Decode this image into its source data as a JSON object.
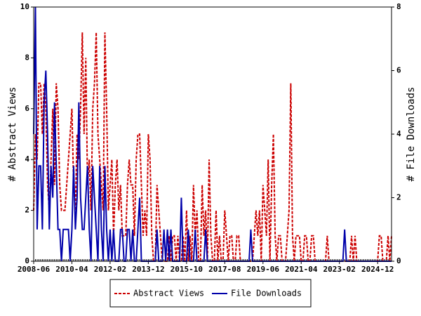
{
  "chart_data": {
    "type": "line",
    "x": [
      "2008-06",
      "2008-07",
      "2008-08",
      "2008-09",
      "2008-10",
      "2008-11",
      "2008-12",
      "2009-01",
      "2009-02",
      "2009-03",
      "2009-04",
      "2009-05",
      "2009-06",
      "2009-07",
      "2009-08",
      "2009-09",
      "2009-10",
      "2009-11",
      "2009-12",
      "2010-01",
      "2010-02",
      "2010-03",
      "2010-04",
      "2010-05",
      "2010-06",
      "2010-07",
      "2010-08",
      "2010-09",
      "2010-10",
      "2010-11",
      "2010-12",
      "2011-01",
      "2011-02",
      "2011-03",
      "2011-04",
      "2011-05",
      "2011-06",
      "2011-07",
      "2011-08",
      "2011-09",
      "2011-10",
      "2011-11",
      "2011-12",
      "2012-01",
      "2012-02",
      "2012-03",
      "2012-04",
      "2012-05",
      "2012-06",
      "2012-07",
      "2012-08",
      "2012-09",
      "2012-10",
      "2012-11",
      "2012-12",
      "2013-01",
      "2013-02",
      "2013-03",
      "2013-04",
      "2013-05",
      "2013-06",
      "2013-07",
      "2013-08",
      "2013-09",
      "2013-10",
      "2013-11",
      "2013-12",
      "2014-01",
      "2014-02",
      "2014-03",
      "2014-04",
      "2014-05",
      "2014-06",
      "2014-07",
      "2014-08",
      "2014-09",
      "2014-10",
      "2014-11",
      "2014-12",
      "2015-01",
      "2015-02",
      "2015-03",
      "2015-04",
      "2015-05",
      "2015-06",
      "2015-07",
      "2015-08",
      "2015-09",
      "2015-10",
      "2015-11",
      "2015-12",
      "2016-01",
      "2016-02",
      "2016-03",
      "2016-04",
      "2016-05",
      "2016-06",
      "2016-07",
      "2016-08",
      "2016-09",
      "2016-10",
      "2016-11",
      "2016-12",
      "2017-01",
      "2017-02",
      "2017-03",
      "2017-04",
      "2017-05",
      "2017-06",
      "2017-07",
      "2017-08",
      "2017-09",
      "2017-10",
      "2017-11",
      "2017-12",
      "2018-01",
      "2018-02",
      "2018-03",
      "2018-04",
      "2018-05",
      "2018-06",
      "2018-07",
      "2018-08",
      "2018-09",
      "2018-10",
      "2018-11",
      "2018-12",
      "2019-01",
      "2019-02",
      "2019-03",
      "2019-04",
      "2019-05",
      "2019-06",
      "2019-07",
      "2019-08",
      "2019-09",
      "2019-10",
      "2019-11",
      "2019-12",
      "2020-01",
      "2020-02",
      "2020-03",
      "2020-04",
      "2020-05",
      "2020-06",
      "2020-07",
      "2020-08",
      "2020-09",
      "2020-10",
      "2020-11",
      "2020-12",
      "2021-01",
      "2021-02",
      "2021-03",
      "2021-04",
      "2021-05",
      "2021-06",
      "2021-07",
      "2021-08",
      "2021-09",
      "2021-10",
      "2021-11",
      "2021-12",
      "2022-01",
      "2022-02",
      "2022-03",
      "2022-04",
      "2022-05",
      "2022-06",
      "2022-07",
      "2022-08",
      "2022-09",
      "2022-10",
      "2022-11",
      "2022-12",
      "2023-01",
      "2023-02",
      "2023-03",
      "2023-04",
      "2023-05",
      "2023-06",
      "2023-07",
      "2023-08",
      "2023-09",
      "2023-10",
      "2023-11",
      "2023-12",
      "2024-01",
      "2024-02",
      "2024-03",
      "2024-04",
      "2024-05",
      "2024-06",
      "2024-07",
      "2024-08",
      "2024-09",
      "2024-10",
      "2024-11",
      "2024-12",
      "2025-01",
      "2025-02",
      "2025-03",
      "2025-04",
      "2025-05",
      "2025-06",
      "2025-07",
      "2025-08"
    ],
    "xticks": [
      "2008-06",
      "2010-04",
      "2012-02",
      "2013-12",
      "2015-10",
      "2017-08",
      "2019-06",
      "2021-04",
      "2023-02",
      "2024-12"
    ],
    "ylabel": "# Abstract Views",
    "y2label": "# File Downloads",
    "ylim": [
      0,
      10
    ],
    "yticks": [
      0,
      2,
      4,
      6,
      8,
      10
    ],
    "y2lim": [
      0,
      8
    ],
    "y2ticks": [
      0,
      2,
      4,
      6,
      8
    ],
    "legend": "bottom",
    "series": [
      {
        "name": "Abstract Views",
        "color": "#cc0000",
        "dash": true,
        "axis": "y",
        "values": [
          2,
          5,
          4,
          7,
          7,
          5,
          7,
          6,
          3,
          2,
          4,
          6,
          3,
          7,
          6,
          3,
          2,
          2,
          2,
          3,
          4,
          5,
          6,
          3,
          2,
          5,
          4,
          6,
          9,
          5,
          8,
          3,
          4,
          2,
          6,
          7,
          9,
          5,
          4,
          3,
          2,
          9,
          6,
          2,
          3,
          4,
          1,
          3,
          4,
          2,
          3,
          1,
          1,
          1,
          3,
          4,
          3,
          3,
          1,
          4,
          5,
          5,
          3,
          1,
          2,
          1,
          5,
          4,
          1,
          0,
          0,
          3,
          2,
          1,
          0,
          0,
          0,
          0,
          1,
          0,
          1,
          1,
          0,
          1,
          0,
          0,
          1,
          0,
          2,
          0,
          1,
          0,
          3,
          1,
          2,
          0,
          0,
          3,
          1,
          2,
          0,
          4,
          1,
          0,
          0,
          2,
          0,
          1,
          0,
          0,
          2,
          1,
          0,
          1,
          1,
          0,
          0,
          1,
          1,
          0,
          0,
          0,
          0,
          0,
          0,
          0,
          0,
          1,
          2,
          1,
          2,
          0,
          3,
          2,
          1,
          4,
          0,
          3,
          5,
          1,
          0,
          1,
          1,
          0,
          0,
          0,
          1,
          2,
          7,
          1,
          0,
          1,
          1,
          1,
          0,
          0,
          1,
          1,
          0,
          0,
          1,
          1,
          0,
          0,
          0,
          0,
          0,
          0,
          0,
          1,
          0,
          0,
          0,
          0,
          0,
          0,
          0,
          0,
          0,
          0,
          0,
          0,
          0,
          1,
          0,
          1,
          0,
          0,
          0,
          0,
          0,
          0,
          0,
          0,
          0,
          0,
          0,
          0,
          0,
          1,
          1,
          0,
          0,
          0,
          1,
          0,
          1
        ]
      },
      {
        "name": "File Downloads",
        "color": "#0000aa",
        "dash": false,
        "axis": "y2",
        "values": [
          4,
          8,
          1,
          3,
          3,
          1,
          5,
          6,
          4,
          1,
          3,
          2,
          5,
          3,
          1,
          1,
          0,
          1,
          1,
          1,
          1,
          0,
          1,
          3,
          1,
          2,
          5,
          2,
          1,
          1,
          2,
          3,
          1,
          0,
          3,
          2,
          1,
          0,
          3,
          1,
          0,
          3,
          1,
          0,
          1,
          0,
          1,
          0,
          0,
          0,
          1,
          1,
          0,
          0,
          1,
          1,
          0,
          1,
          0,
          0,
          1,
          2,
          0,
          0,
          0,
          0,
          0,
          0,
          0,
          0,
          0,
          1,
          0,
          0,
          0,
          1,
          0,
          1,
          0,
          1,
          0,
          0,
          0,
          0,
          0,
          2,
          0,
          0,
          0,
          1,
          0,
          0,
          0,
          1,
          0,
          0,
          0,
          0,
          0,
          1,
          0,
          0,
          0,
          0,
          0,
          0,
          0,
          0,
          0,
          0,
          0,
          0,
          0,
          0,
          0,
          0,
          0,
          0,
          0,
          0,
          0,
          0,
          0,
          0,
          0,
          1,
          0,
          0,
          0,
          0,
          0,
          0,
          0,
          0,
          0,
          0,
          0,
          0,
          0,
          0,
          0,
          0,
          0,
          0,
          0,
          0,
          0,
          0,
          0,
          0,
          0,
          0,
          0,
          0,
          0,
          0,
          0,
          0,
          0,
          0,
          0,
          0,
          0,
          0,
          0,
          0,
          0,
          0,
          0,
          0,
          0,
          0,
          0,
          0,
          0,
          0,
          0,
          0,
          0,
          1,
          0,
          0,
          0,
          0,
          0,
          0,
          0,
          0,
          0,
          0,
          0,
          0,
          0,
          0,
          0,
          0,
          0,
          0,
          0,
          0,
          0,
          0,
          0,
          0,
          0,
          0,
          0
        ]
      }
    ]
  }
}
